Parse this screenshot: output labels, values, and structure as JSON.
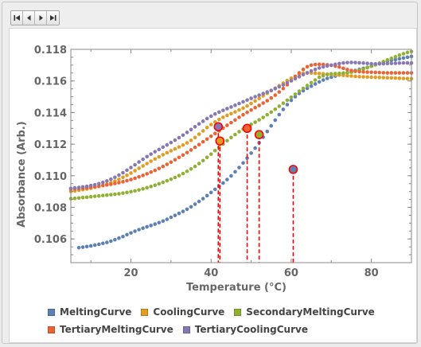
{
  "toolbar": {
    "buttons": [
      {
        "name": "first-frame-button",
        "icon": "skip-first-icon"
      },
      {
        "name": "previous-frame-button",
        "icon": "step-back-icon"
      },
      {
        "name": "next-frame-button",
        "icon": "step-forward-icon"
      },
      {
        "name": "last-frame-button",
        "icon": "skip-last-icon"
      }
    ]
  },
  "chart_data": {
    "type": "scatter",
    "xlabel": "Temperature  (°C)",
    "ylabel": "Absorbance  (Arb.)",
    "xlim": [
      5,
      90
    ],
    "ylim": [
      0.1045,
      0.118
    ],
    "xticks": [
      20,
      40,
      60,
      80
    ],
    "xtick_labels": [
      "20",
      "40",
      "60",
      "80"
    ],
    "yticks": [
      0.106,
      0.108,
      0.11,
      0.112,
      0.114,
      0.116,
      0.118
    ],
    "ytick_labels": [
      "0.106",
      "0.108",
      "0.110",
      "0.112",
      "0.114",
      "0.116",
      "0.118"
    ],
    "grid": false,
    "legend_position": "bottom",
    "series": [
      {
        "name": "MeltingCurve",
        "color": "#5e81b5",
        "x_start": 7,
        "x_step": 1,
        "values": [
          0.10545,
          0.10548,
          0.10552,
          0.10556,
          0.10561,
          0.10566,
          0.10572,
          0.10578,
          0.10586,
          0.10595,
          0.10605,
          0.10615,
          0.10627,
          0.10638,
          0.10649,
          0.10659,
          0.10668,
          0.10677,
          0.10685,
          0.10694,
          0.10703,
          0.10713,
          0.10724,
          0.10737,
          0.10749,
          0.10762,
          0.10774,
          0.10788,
          0.10803,
          0.1082,
          0.10837,
          0.10855,
          0.10874,
          0.10894,
          0.10914,
          0.10934,
          0.10954,
          0.10976,
          0.10999,
          0.11025,
          0.11052,
          0.11081,
          0.11111,
          0.11143,
          0.11175,
          0.11209,
          0.11244,
          0.1128,
          0.11316,
          0.11352,
          0.11387,
          0.1142,
          0.1145,
          0.11477,
          0.115,
          0.11521,
          0.11538,
          0.11553,
          0.11567,
          0.11581,
          0.11594,
          0.11606,
          0.11616,
          0.11624,
          0.11631,
          0.11638,
          0.11645,
          0.11652,
          0.11659,
          0.11666,
          0.11673,
          0.1168,
          0.11686,
          0.11694,
          0.11703,
          0.11711,
          0.11718,
          0.11724,
          0.1173,
          0.11735,
          0.1174,
          0.11745,
          0.1175,
          0.11755
        ]
      },
      {
        "name": "CoolingCurve",
        "color": "#e19c24",
        "x_start": 5,
        "x_step": 1,
        "values": [
          0.109,
          0.10904,
          0.10908,
          0.10912,
          0.10916,
          0.10921,
          0.10927,
          0.10932,
          0.10939,
          0.10947,
          0.10956,
          0.10966,
          0.10977,
          0.1099,
          0.11003,
          0.11017,
          0.11032,
          0.11047,
          0.11062,
          0.11077,
          0.11092,
          0.11106,
          0.1112,
          0.11133,
          0.11146,
          0.11158,
          0.1117,
          0.11182,
          0.11194,
          0.11208,
          0.11224,
          0.11242,
          0.11263,
          0.11284,
          0.11305,
          0.11324,
          0.11341,
          0.11356,
          0.1137,
          0.11382,
          0.11393,
          0.11404,
          0.11416,
          0.11428,
          0.11442,
          0.11457,
          0.11473,
          0.11489,
          0.11506,
          0.11522,
          0.11538,
          0.11554,
          0.1157,
          0.11586,
          0.11602,
          0.11617,
          0.1163,
          0.11641,
          0.11648,
          0.1165,
          0.1165,
          0.11649,
          0.11647,
          0.11645,
          0.11643,
          0.11641,
          0.11639,
          0.11637,
          0.11635,
          0.11633,
          0.11631,
          0.11629,
          0.11627,
          0.11626,
          0.11625,
          0.11624,
          0.11623,
          0.11622,
          0.11621,
          0.1162,
          0.11619,
          0.11618,
          0.11617,
          0.11616,
          0.11615,
          0.11614
        ]
      },
      {
        "name": "SecondaryMeltingCurve",
        "color": "#8fb032",
        "x_start": 5,
        "x_step": 1,
        "values": [
          0.10855,
          0.10857,
          0.10859,
          0.10862,
          0.10864,
          0.10867,
          0.1087,
          0.10872,
          0.10875,
          0.10877,
          0.1088,
          0.10883,
          0.10886,
          0.1089,
          0.10894,
          0.10899,
          0.10904,
          0.1091,
          0.10917,
          0.10924,
          0.10932,
          0.1094,
          0.10949,
          0.10958,
          0.10968,
          0.10978,
          0.10989,
          0.11001,
          0.11014,
          0.11028,
          0.11043,
          0.11059,
          0.11077,
          0.11096,
          0.11116,
          0.11137,
          0.11159,
          0.1118,
          0.11201,
          0.11222,
          0.11242,
          0.11261,
          0.11279,
          0.11295,
          0.1131,
          0.11325,
          0.11339,
          0.11354,
          0.11369,
          0.11386,
          0.11403,
          0.11421,
          0.1144,
          0.11459,
          0.11478,
          0.11497,
          0.11516,
          0.11535,
          0.11553,
          0.11571,
          0.11589,
          0.11606,
          0.11623,
          0.11633,
          0.1164,
          0.11645,
          0.11647,
          0.11648,
          0.1165,
          0.11652,
          0.11656,
          0.11661,
          0.11668,
          0.11676,
          0.11684,
          0.11693,
          0.11702,
          0.11712,
          0.11722,
          0.11733,
          0.11743,
          0.11753,
          0.11763,
          0.11772,
          0.1178,
          0.11786
        ]
      },
      {
        "name": "TertiaryMeltingCurve",
        "color": "#eb6235",
        "x_start": 5,
        "x_step": 1,
        "values": [
          0.10915,
          0.10917,
          0.10919,
          0.10921,
          0.10924,
          0.10927,
          0.1093,
          0.10934,
          0.10938,
          0.10942,
          0.10946,
          0.10951,
          0.10956,
          0.10962,
          0.10969,
          0.10976,
          0.10984,
          0.10993,
          0.11002,
          0.11012,
          0.11023,
          0.11034,
          0.11046,
          0.11059,
          0.11072,
          0.11086,
          0.11101,
          0.11116,
          0.11131,
          0.11147,
          0.11163,
          0.1118,
          0.11197,
          0.11215,
          0.11232,
          0.1125,
          0.11267,
          0.11284,
          0.11302,
          0.11319,
          0.11336,
          0.11353,
          0.1137,
          0.11386,
          0.11401,
          0.11416,
          0.11431,
          0.11445,
          0.1146,
          0.11475,
          0.11492,
          0.1151,
          0.1153,
          0.11552,
          0.11576,
          0.11601,
          0.11627,
          0.11651,
          0.11673,
          0.1169,
          0.117,
          0.11704,
          0.11705,
          0.11704,
          0.11702,
          0.11699,
          0.11694,
          0.11688,
          0.1168,
          0.11672,
          0.11666,
          0.11662,
          0.11659,
          0.11657,
          0.11656,
          0.11655,
          0.11654,
          0.11653,
          0.11652,
          0.11651,
          0.11651,
          0.11651,
          0.11651,
          0.11651,
          0.11651,
          0.11651
        ]
      },
      {
        "name": "TertiaryCoolingCurve",
        "color": "#8778b3",
        "x_start": 5,
        "x_step": 1,
        "values": [
          0.1092,
          0.10923,
          0.10926,
          0.10929,
          0.10933,
          0.10938,
          0.10943,
          0.1095,
          0.10958,
          0.10967,
          0.10978,
          0.1099,
          0.11004,
          0.11019,
          0.11035,
          0.11052,
          0.11069,
          0.11087,
          0.11104,
          0.11121,
          0.11137,
          0.11152,
          0.11166,
          0.11181,
          0.11195,
          0.1121,
          0.11225,
          0.11241,
          0.11257,
          0.11274,
          0.11292,
          0.1131,
          0.11328,
          0.11345,
          0.11362,
          0.11377,
          0.11391,
          0.11403,
          0.11414,
          0.11425,
          0.11435,
          0.11446,
          0.11457,
          0.11468,
          0.11479,
          0.1149,
          0.115,
          0.1151,
          0.1152,
          0.1153,
          0.1154,
          0.11551,
          0.11563,
          0.11575,
          0.11588,
          0.11601,
          0.11614,
          0.11627,
          0.1164,
          0.11652,
          0.11663,
          0.11673,
          0.11682,
          0.11689,
          0.11695,
          0.117,
          0.11705,
          0.1171,
          0.11714,
          0.11716,
          0.11717,
          0.11716,
          0.11715,
          0.11713,
          0.11711,
          0.11709,
          0.11708,
          0.11708,
          0.11709,
          0.1171,
          0.11711,
          0.11712,
          0.11713,
          0.11714,
          0.11714,
          0.11714
        ]
      }
    ],
    "annotations": [
      {
        "series": "MeltingCurve",
        "x": 60.5,
        "y": 0.1104,
        "style": "dashed-drop-line",
        "color": "#ff0000"
      },
      {
        "series": "CoolingCurve",
        "x": 42.2,
        "y": 0.1122,
        "style": "dashed-drop-line",
        "color": "#ff0000"
      },
      {
        "series": "SecondaryMeltingCurve",
        "x": 52,
        "y": 0.1126,
        "style": "dashed-drop-line",
        "color": "#ff0000"
      },
      {
        "series": "TertiaryMeltingCurve",
        "x": 49,
        "y": 0.113,
        "style": "dashed-drop-line",
        "color": "#ff0000"
      },
      {
        "series": "TertiaryCoolingCurve",
        "x": 41.8,
        "y": 0.1131,
        "style": "dashed-drop-line",
        "color": "#ff0000"
      }
    ]
  }
}
